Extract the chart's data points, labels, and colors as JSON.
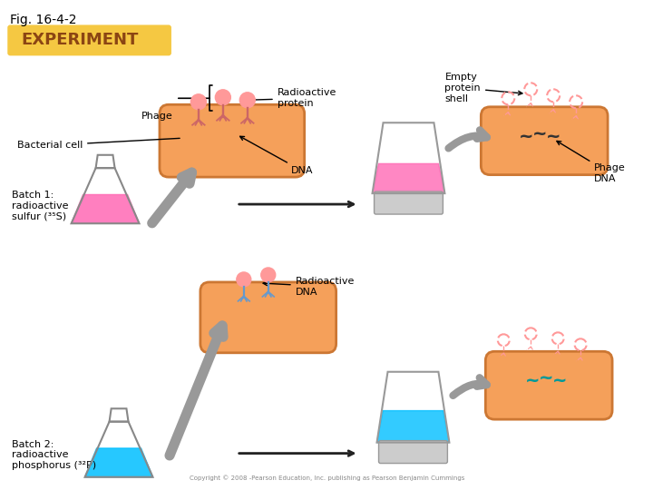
{
  "title": "Fig. 16-4-2",
  "experiment_label": "EXPERIMENT",
  "experiment_bg": "#F5C842",
  "experiment_text_color": "#8B4513",
  "background_color": "#ffffff",
  "labels": {
    "phage": "Phage",
    "bacterial_cell": "Bacterial cell",
    "radioactive_protein": "Radioactive\nprotein",
    "empty_protein_shell": "Empty\nprotein\nshell",
    "dna": "DNA",
    "phage_dna": "Phage\nDNA",
    "radioactive_dna": "Radioactive\nDNA",
    "batch1": "Batch 1:\nradioactive\nsulfur (³⁵S)",
    "batch2": "Batch 2:\nradioactive\nphosphorus (³²P)"
  },
  "cell_color": "#F5A05A",
  "cell_edge": "#CC7733",
  "flask1_liquid": "#FF69B4",
  "flask2_liquid": "#00BFFF",
  "blender1_liquid": "#FF69B4",
  "blender2_liquid": "#00BFFF",
  "phage_color": "#FF9999",
  "phage_leg_color": "#CC6666",
  "arrow_color": "#999999",
  "black_arrow": "#222222",
  "dna_color_batch1": "#333333",
  "dna_color_batch2": "#009999",
  "copyright": "Copyright © 2008 -Pearson Education, Inc. publishing as Pearson Benjamin Cummings"
}
